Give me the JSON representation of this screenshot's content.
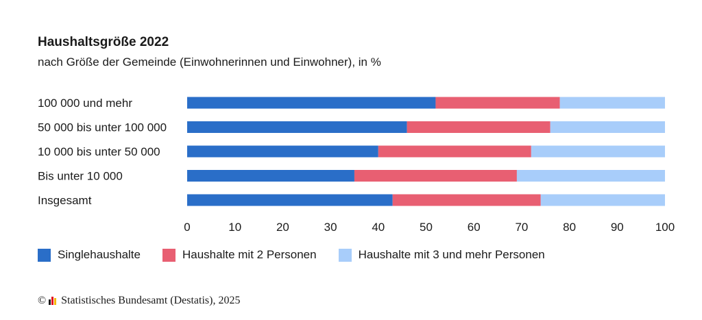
{
  "header": {
    "title": "Haushaltsgröße 2022",
    "subtitle": "nach Größe der Gemeinde (Einwohnerinnen und Einwohner), in %"
  },
  "footer": {
    "copyright_symbol": "©",
    "source": "Statistisches Bundesamt (Destatis), 2025"
  },
  "logo_colors": [
    "#1a1a1a",
    "#e2001a",
    "#f5b800"
  ],
  "chart_data": {
    "type": "bar",
    "orientation": "horizontal",
    "stacked": true,
    "title": "Haushaltsgröße 2022",
    "subtitle": "nach Größe der Gemeinde (Einwohnerinnen und Einwohner), in %",
    "categories": [
      "100 000 und mehr",
      "50 000 bis unter 100 000",
      "10 000 bis unter 50 000",
      "Bis unter 10 000",
      "Insgesamt"
    ],
    "series": [
      {
        "name": "Singlehaushalte",
        "color": "#2a6ec8",
        "values": [
          52,
          46,
          40,
          35,
          43
        ]
      },
      {
        "name": "Haushalte mit 2 Personen",
        "color": "#e85f72",
        "values": [
          26,
          30,
          32,
          34,
          31
        ]
      },
      {
        "name": "Haushalte mit 3 und mehr Personen",
        "color": "#a8cdfa",
        "values": [
          22,
          24,
          28,
          31,
          26
        ]
      }
    ],
    "xlim": [
      0,
      100
    ],
    "xticks": [
      0,
      10,
      20,
      30,
      40,
      50,
      60,
      70,
      80,
      90,
      100
    ],
    "xlabel": "",
    "ylabel": "",
    "grid": false,
    "legend_position": "bottom-left"
  }
}
